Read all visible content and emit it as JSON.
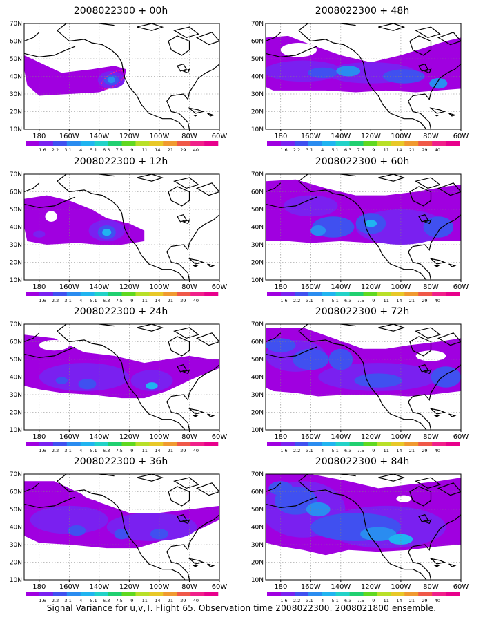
{
  "caption": "Signal Variance for u,v,T. Flight 65. Observation time 2008022300. 2008021800 ensemble.",
  "lat_labels": [
    "70N",
    "60N",
    "50N",
    "40N",
    "30N",
    "20N",
    "10N"
  ],
  "lon_labels": [
    "180",
    "160W",
    "140W",
    "120W",
    "100W",
    "80W",
    "60W"
  ],
  "colorbar": {
    "labels": [
      "1.6",
      "2.2",
      "3.1",
      "4",
      "5.1",
      "6.3",
      "7.5",
      "9",
      "11",
      "14",
      "21",
      "29",
      "40"
    ],
    "colors": [
      "#a000e0",
      "#7a20f0",
      "#4050f0",
      "#2a8cf0",
      "#20b4f0",
      "#22d2c8",
      "#20d070",
      "#60d820",
      "#b8e028",
      "#e8c828",
      "#f09a30",
      "#f05848",
      "#f0208a",
      "#e8008c"
    ]
  },
  "level_colors": {
    "1": "#a000e0",
    "2": "#7a20f0",
    "3": "#4050f0",
    "4": "#2a8cf0",
    "5": "#20b4f0",
    "6": "#22d2c8"
  },
  "panels": [
    {
      "title": "2008022300 + 00h",
      "lead": "00h"
    },
    {
      "title": "2008022300 + 48h",
      "lead": "48h"
    },
    {
      "title": "2008022300 + 12h",
      "lead": "12h"
    },
    {
      "title": "2008022300 + 60h",
      "lead": "60h"
    },
    {
      "title": "2008022300 + 24h",
      "lead": "24h"
    },
    {
      "title": "2008022300 + 72h",
      "lead": "72h"
    },
    {
      "title": "2008022300 + 36h",
      "lead": "36h"
    },
    {
      "title": "2008022300 + 84h",
      "lead": "84h"
    }
  ]
}
